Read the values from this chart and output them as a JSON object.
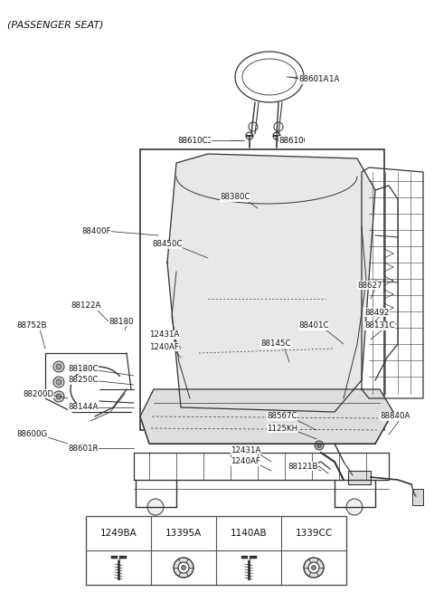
{
  "title": "(PASSENGER SEAT)",
  "bg_color": "#ffffff",
  "line_color": "#333333",
  "label_color": "#111111",
  "table_codes": [
    "1249BA",
    "13395A",
    "1140AB",
    "1339CC"
  ],
  "figsize": [
    4.8,
    6.55
  ],
  "dpi": 100
}
